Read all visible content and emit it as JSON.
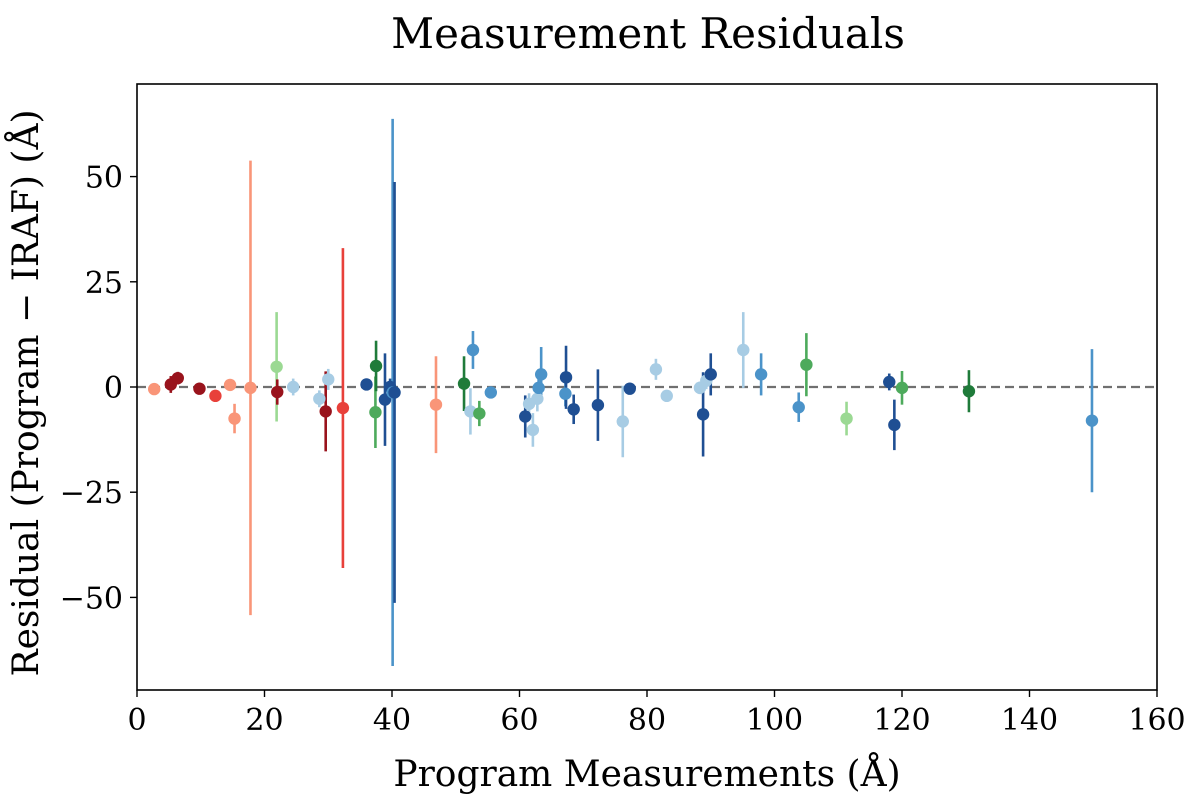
{
  "chart_data": {
    "type": "scatter",
    "title": "Measurement Residuals",
    "xlabel": "Program Measurements (Å)",
    "ylabel": "Residual (Program − IRAF) (Å)",
    "xlim": [
      0,
      160
    ],
    "ylim": [
      -72,
      72
    ],
    "xticks": [
      0,
      20,
      40,
      60,
      80,
      100,
      120,
      140,
      160
    ],
    "yticks": [
      -50,
      -25,
      0,
      25,
      50
    ],
    "reference_line": {
      "y": 0,
      "style": "dashed",
      "color": "#707070"
    },
    "colors": {
      "dark_red": "#99131c",
      "red": "#e8403a",
      "salmon": "#f99578",
      "dark_blue": "#1f4f93",
      "mid_blue": "#4b93c9",
      "light_blue": "#a7cce4",
      "dark_green": "#1f7b3a",
      "mid_green": "#4daa5c",
      "light_green": "#9bd993"
    },
    "points": [
      {
        "x": 2.7,
        "y": -0.5,
        "err": 0.8,
        "color": "salmon"
      },
      {
        "x": 5.3,
        "y": 0.6,
        "err": 2.0,
        "color": "dark_red"
      },
      {
        "x": 6.4,
        "y": 2.1,
        "err": 1.5,
        "color": "dark_red"
      },
      {
        "x": 9.8,
        "y": -0.4,
        "err": 1.0,
        "color": "dark_red"
      },
      {
        "x": 12.3,
        "y": -2.1,
        "err": 1.0,
        "color": "red"
      },
      {
        "x": 14.6,
        "y": 0.5,
        "err": 1.0,
        "color": "salmon"
      },
      {
        "x": 15.3,
        "y": -7.5,
        "err": 3.5,
        "color": "salmon"
      },
      {
        "x": 17.8,
        "y": -0.2,
        "err": 54,
        "color": "salmon"
      },
      {
        "x": 21.9,
        "y": 4.8,
        "err": 13,
        "color": "light_green"
      },
      {
        "x": 22.0,
        "y": -1.2,
        "err": 3,
        "color": "dark_red"
      },
      {
        "x": 24.5,
        "y": 0.0,
        "err": 2.0,
        "color": "light_blue"
      },
      {
        "x": 28.6,
        "y": -2.8,
        "err": 2.0,
        "color": "light_blue"
      },
      {
        "x": 29.6,
        "y": -5.8,
        "err": 9.5,
        "color": "dark_red"
      },
      {
        "x": 30.0,
        "y": 1.8,
        "err": 2.5,
        "color": "light_blue"
      },
      {
        "x": 32.3,
        "y": -5.0,
        "err": 38,
        "color": "red"
      },
      {
        "x": 36.0,
        "y": 0.6,
        "err": 1.0,
        "color": "dark_blue"
      },
      {
        "x": 37.4,
        "y": -6.0,
        "err": 8.5,
        "color": "mid_green"
      },
      {
        "x": 37.5,
        "y": 5.0,
        "err": 6.0,
        "color": "dark_green"
      },
      {
        "x": 38.9,
        "y": -3.0,
        "err": 11,
        "color": "dark_blue"
      },
      {
        "x": 39.7,
        "y": 0.0,
        "err": 2.0,
        "color": "dark_blue"
      },
      {
        "x": 40.1,
        "y": -1.3,
        "err": 65,
        "color": "mid_blue"
      },
      {
        "x": 40.4,
        "y": -1.3,
        "err": 50,
        "color": "dark_blue"
      },
      {
        "x": 46.9,
        "y": -4.2,
        "err": 11.5,
        "color": "salmon"
      },
      {
        "x": 51.3,
        "y": 0.8,
        "err": 6.5,
        "color": "dark_green"
      },
      {
        "x": 52.3,
        "y": -5.8,
        "err": 5.5,
        "color": "light_blue"
      },
      {
        "x": 52.7,
        "y": 8.8,
        "err": 4.5,
        "color": "mid_blue"
      },
      {
        "x": 53.7,
        "y": -6.3,
        "err": 3.0,
        "color": "mid_green"
      },
      {
        "x": 55.5,
        "y": -1.3,
        "err": 1.0,
        "color": "mid_blue"
      },
      {
        "x": 60.9,
        "y": -7.0,
        "err": 5.0,
        "color": "dark_blue"
      },
      {
        "x": 61.5,
        "y": -4.0,
        "err": 2.5,
        "color": "light_blue"
      },
      {
        "x": 62.1,
        "y": -10.2,
        "err": 4.0,
        "color": "light_blue"
      },
      {
        "x": 62.8,
        "y": -2.8,
        "err": 3.0,
        "color": "light_blue"
      },
      {
        "x": 63.0,
        "y": -0.2,
        "err": 3.0,
        "color": "mid_blue"
      },
      {
        "x": 63.4,
        "y": 3.0,
        "err": 6.5,
        "color": "mid_blue"
      },
      {
        "x": 67.2,
        "y": -1.6,
        "err": 3.0,
        "color": "mid_blue"
      },
      {
        "x": 67.3,
        "y": 2.3,
        "err": 7.5,
        "color": "dark_blue"
      },
      {
        "x": 68.5,
        "y": -5.3,
        "err": 3.5,
        "color": "dark_blue"
      },
      {
        "x": 72.3,
        "y": -4.3,
        "err": 8.5,
        "color": "dark_blue"
      },
      {
        "x": 76.2,
        "y": -8.2,
        "err": 8.5,
        "color": "light_blue"
      },
      {
        "x": 77.3,
        "y": -0.4,
        "err": 1.0,
        "color": "dark_blue"
      },
      {
        "x": 81.4,
        "y": 4.2,
        "err": 2.5,
        "color": "light_blue"
      },
      {
        "x": 83.1,
        "y": -2.1,
        "err": 1.0,
        "color": "light_blue"
      },
      {
        "x": 88.3,
        "y": -0.2,
        "err": 1.5,
        "color": "light_blue"
      },
      {
        "x": 88.8,
        "y": -6.5,
        "err": 10,
        "color": "dark_blue"
      },
      {
        "x": 89.3,
        "y": 1.5,
        "err": 2.0,
        "color": "light_blue"
      },
      {
        "x": 90.0,
        "y": 3.0,
        "err": 5.0,
        "color": "dark_blue"
      },
      {
        "x": 95.1,
        "y": 8.8,
        "err": 9.0,
        "color": "light_blue"
      },
      {
        "x": 97.9,
        "y": 3.0,
        "err": 5.0,
        "color": "mid_blue"
      },
      {
        "x": 103.8,
        "y": -4.8,
        "err": 3.5,
        "color": "mid_blue"
      },
      {
        "x": 105.0,
        "y": 5.3,
        "err": 7.5,
        "color": "mid_green"
      },
      {
        "x": 111.3,
        "y": -7.5,
        "err": 4.0,
        "color": "light_green"
      },
      {
        "x": 118.0,
        "y": 1.2,
        "err": 2.0,
        "color": "dark_blue"
      },
      {
        "x": 118.8,
        "y": -9.0,
        "err": 6.0,
        "color": "dark_blue"
      },
      {
        "x": 120.0,
        "y": -0.2,
        "err": 4.0,
        "color": "mid_green"
      },
      {
        "x": 130.5,
        "y": -1.0,
        "err": 5.0,
        "color": "dark_green"
      },
      {
        "x": 149.8,
        "y": -8.0,
        "err": 17,
        "color": "mid_blue"
      }
    ]
  }
}
